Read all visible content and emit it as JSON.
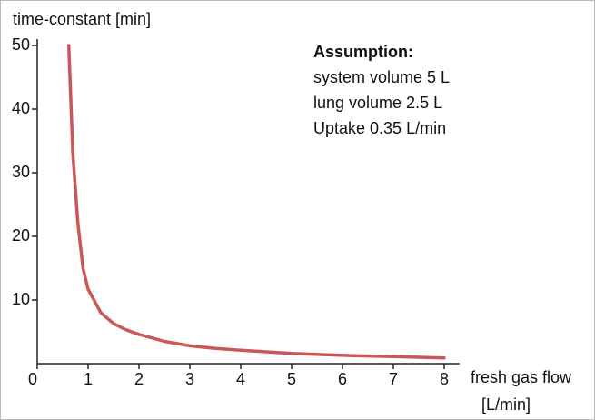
{
  "chart_data": {
    "type": "line",
    "ylabel": "time-constant [min]",
    "xlabel": [
      "fresh gas flow",
      "[L/min]"
    ],
    "annotation": {
      "title": "Assumption:",
      "lines": [
        "system volume 5 L",
        "lung volume 2.5 L",
        "Uptake 0.35 L/min"
      ]
    },
    "x": [
      0.62,
      0.7,
      0.8,
      0.9,
      1,
      1.25,
      1.5,
      1.75,
      2,
      2.5,
      3,
      3.5,
      4,
      5,
      6,
      7,
      8
    ],
    "series": [
      {
        "name": "time-constant",
        "color": "#c8585a",
        "values": [
          50,
          33,
          22,
          15,
          11.7,
          8,
          6.3,
          5.3,
          4.6,
          3.5,
          2.8,
          2.4,
          2.1,
          1.6,
          1.3,
          1.1,
          0.9
        ]
      }
    ],
    "xlim": [
      0,
      8.3
    ],
    "ylim": [
      0,
      51
    ],
    "xticks": [
      0,
      1,
      2,
      3,
      4,
      5,
      6,
      7,
      8
    ],
    "yticks": [
      10,
      20,
      30,
      40,
      50
    ],
    "grid": false
  }
}
